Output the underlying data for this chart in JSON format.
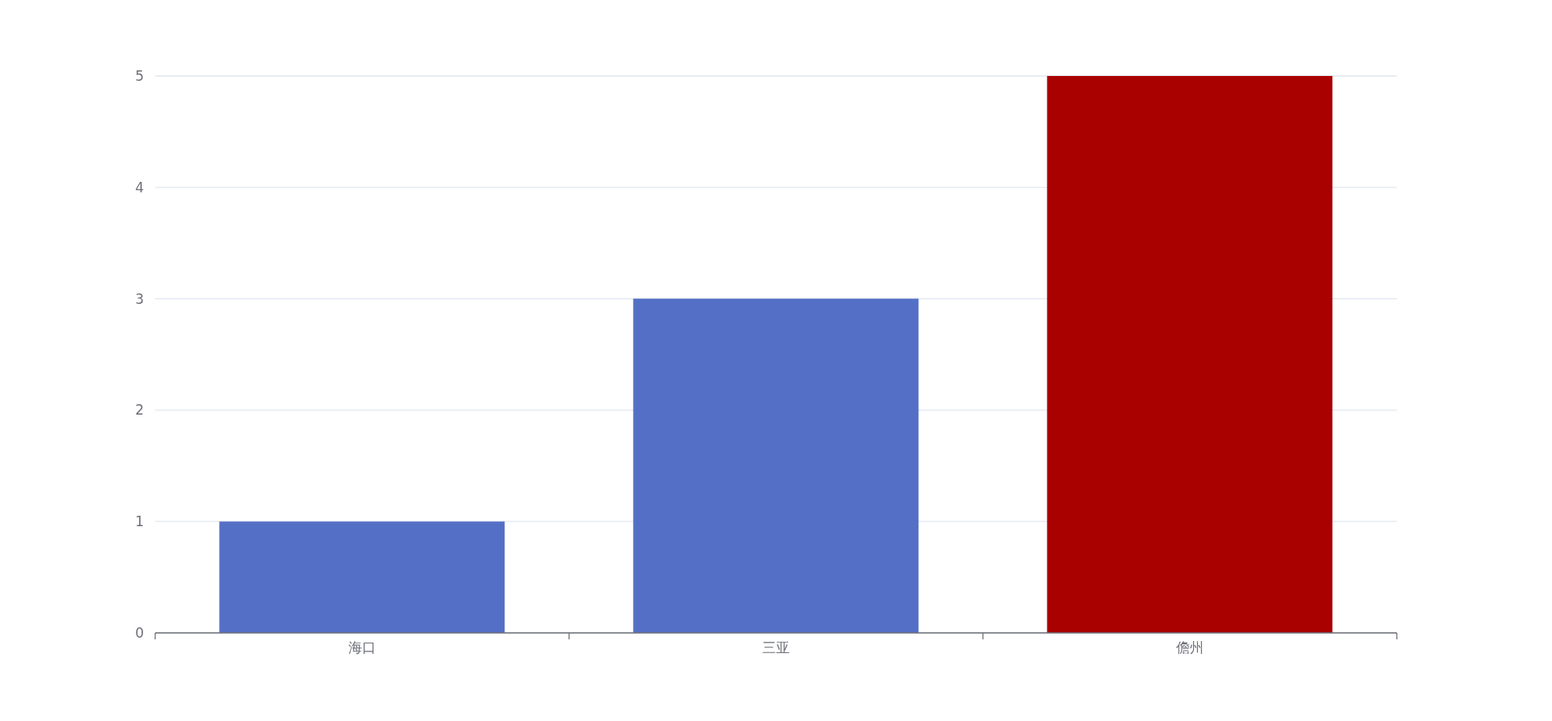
{
  "chart_data": {
    "type": "bar",
    "categories": [
      "海口",
      "三亚",
      "儋州"
    ],
    "values": [
      1,
      3,
      5
    ],
    "colors": [
      "#5470c6",
      "#5470c6",
      "#a90000"
    ],
    "ylim": [
      0,
      5
    ],
    "yticks": [
      0,
      1,
      2,
      3,
      4,
      5
    ],
    "grid": "y"
  }
}
